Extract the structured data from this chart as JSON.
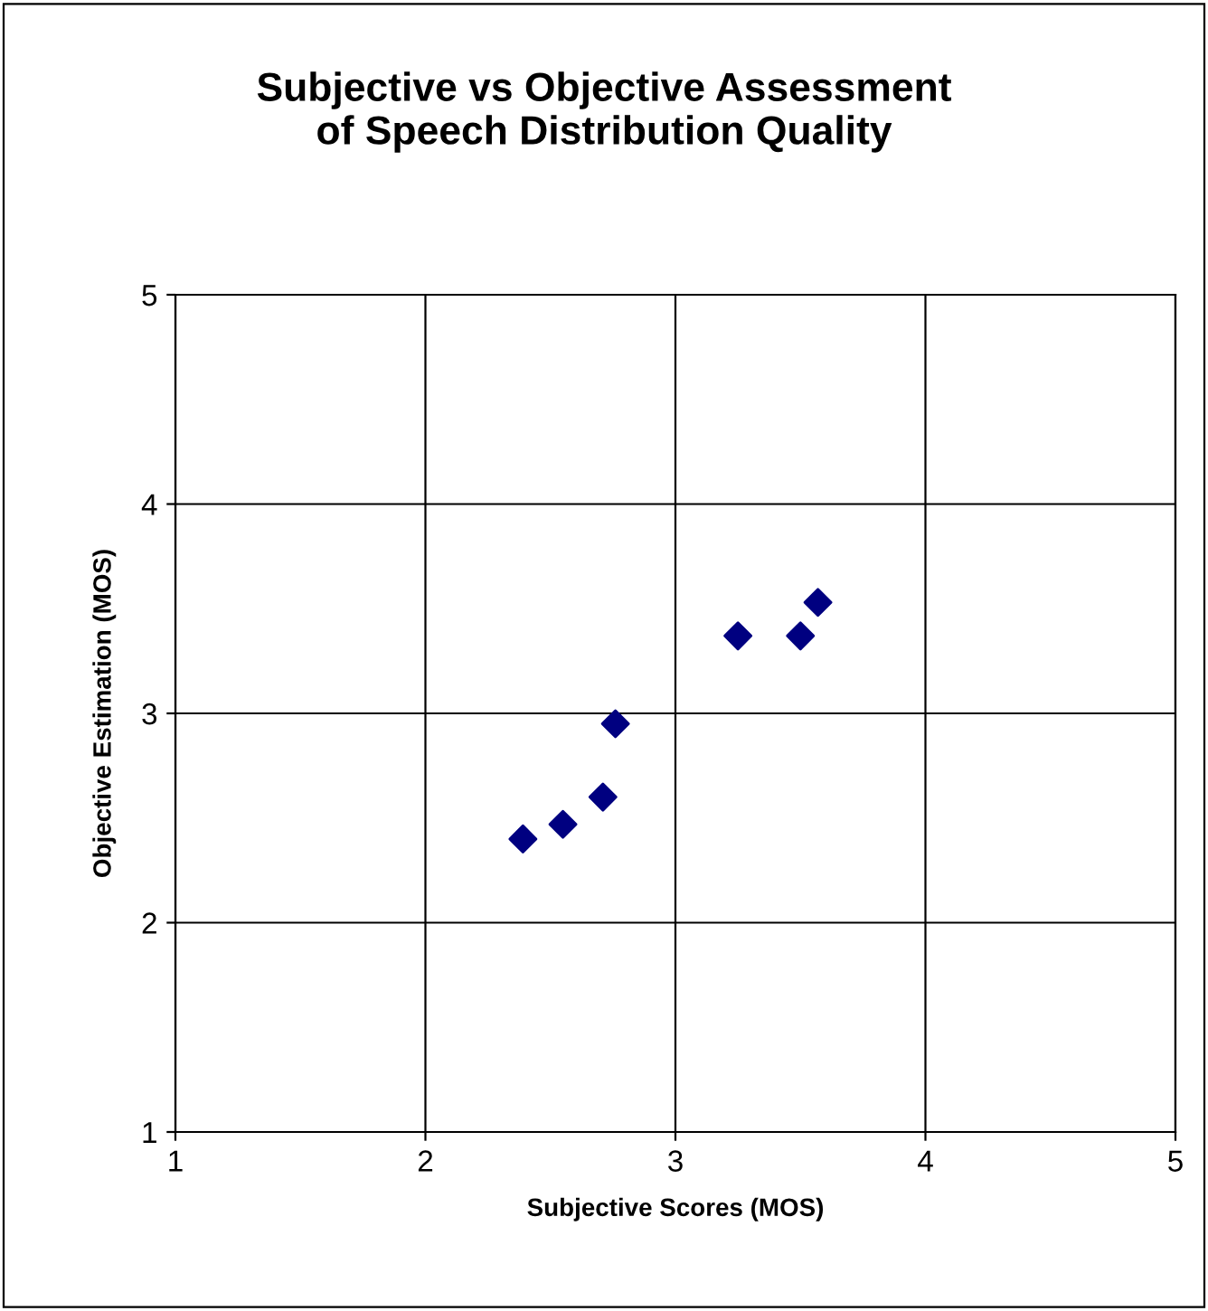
{
  "chart_data": {
    "type": "scatter",
    "title": "Subjective vs Objective Assessment\nof Speech Distribution Quality",
    "xlabel": "Subjective Scores (MOS)",
    "ylabel": "Objective Estimation (MOS)",
    "x": [
      2.39,
      2.55,
      2.71,
      2.76,
      3.25,
      3.5,
      3.57
    ],
    "values": [
      2.4,
      2.47,
      2.6,
      2.95,
      3.37,
      3.37,
      3.53
    ],
    "color": "#000080",
    "marker": "diamond",
    "xlim": [
      1,
      5
    ],
    "ylim": [
      1,
      5
    ],
    "xticks": [
      1,
      2,
      3,
      4,
      5
    ],
    "yticks": [
      1,
      2,
      3,
      4,
      5
    ],
    "grid": true
  }
}
